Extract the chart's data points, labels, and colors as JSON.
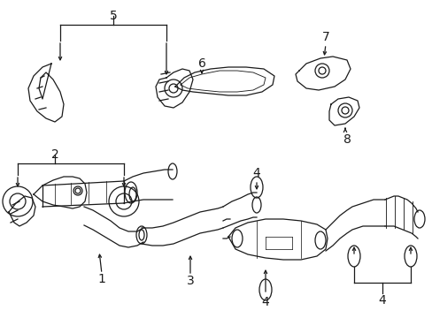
{
  "background_color": "#ffffff",
  "line_color": "#1a1a1a",
  "lw": 0.9,
  "fig_w": 4.89,
  "fig_h": 3.6,
  "dpi": 100
}
